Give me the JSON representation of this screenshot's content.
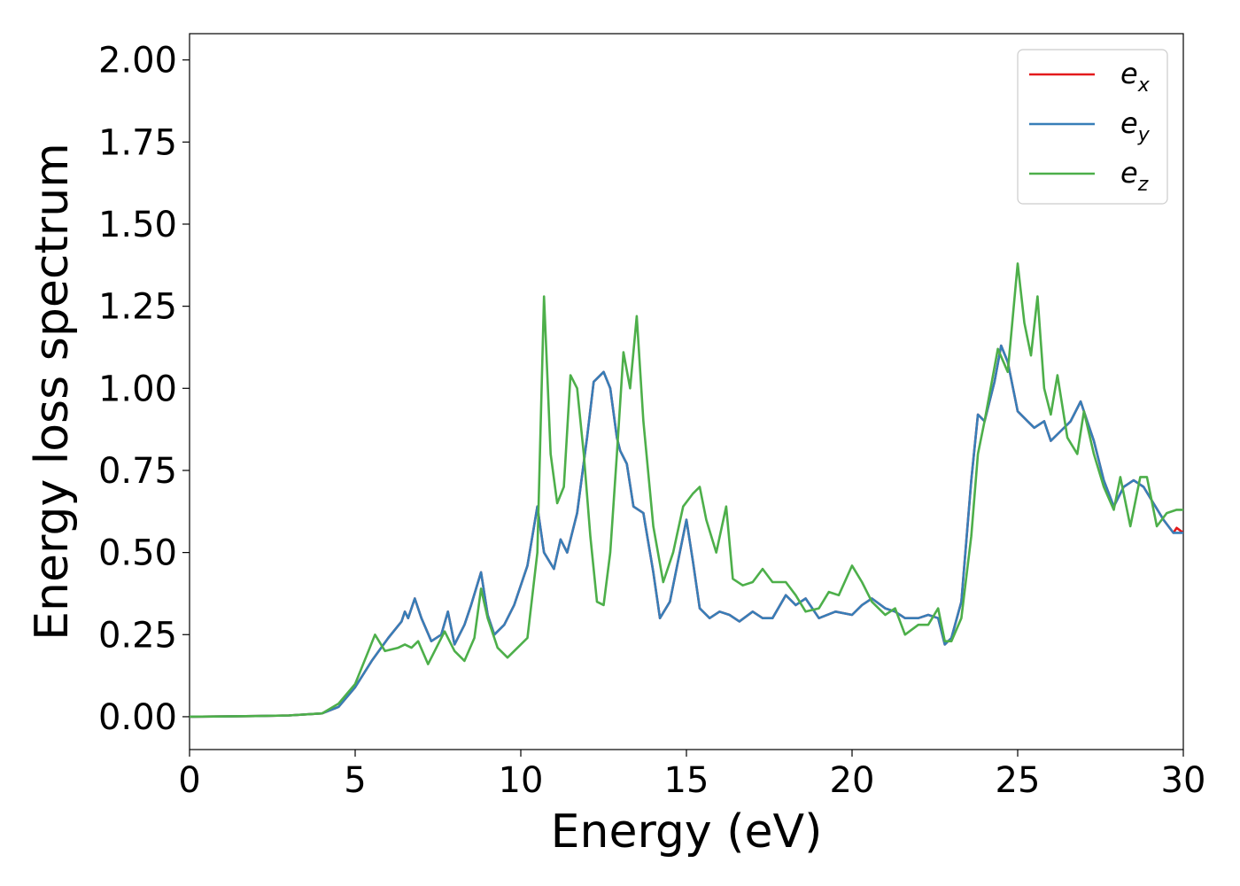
{
  "chart_data": {
    "type": "line",
    "title": "",
    "xlabel": "Energy (eV)",
    "ylabel": "Energy loss spectrum",
    "xlim": [
      0,
      30
    ],
    "ylim": [
      -0.1,
      2.08
    ],
    "xticks": [
      "0",
      "5",
      "10",
      "15",
      "20",
      "25",
      "30"
    ],
    "yticks": [
      "0.00",
      "0.25",
      "0.50",
      "0.75",
      "1.00",
      "1.25",
      "1.50",
      "1.75",
      "2.00"
    ],
    "grid": false,
    "legend_position": "top-right",
    "series": [
      {
        "name": "e_x",
        "label_base": "e",
        "label_sub": "x",
        "color": "#e41a1c",
        "points": [
          [
            0,
            0
          ],
          [
            2,
            0.002
          ],
          [
            3,
            0.004
          ],
          [
            4,
            0.01
          ],
          [
            4.5,
            0.03
          ],
          [
            5,
            0.09
          ],
          [
            5.5,
            0.17
          ],
          [
            6,
            0.24
          ],
          [
            6.4,
            0.29
          ],
          [
            6.5,
            0.32
          ],
          [
            6.6,
            0.3
          ],
          [
            6.8,
            0.36
          ],
          [
            7,
            0.3
          ],
          [
            7.3,
            0.23
          ],
          [
            7.6,
            0.25
          ],
          [
            7.8,
            0.32
          ],
          [
            8,
            0.22
          ],
          [
            8.3,
            0.28
          ],
          [
            8.5,
            0.34
          ],
          [
            8.8,
            0.44
          ],
          [
            9,
            0.31
          ],
          [
            9.2,
            0.25
          ],
          [
            9.5,
            0.28
          ],
          [
            9.8,
            0.34
          ],
          [
            10,
            0.4
          ],
          [
            10.2,
            0.46
          ],
          [
            10.5,
            0.64
          ],
          [
            10.7,
            0.5
          ],
          [
            11,
            0.45
          ],
          [
            11.2,
            0.54
          ],
          [
            11.4,
            0.5
          ],
          [
            11.7,
            0.62
          ],
          [
            12,
            0.85
          ],
          [
            12.2,
            1.02
          ],
          [
            12.5,
            1.05
          ],
          [
            12.7,
            1.0
          ],
          [
            12.9,
            0.85
          ],
          [
            13,
            0.81
          ],
          [
            13.2,
            0.77
          ],
          [
            13.4,
            0.64
          ],
          [
            13.7,
            0.62
          ],
          [
            14,
            0.44
          ],
          [
            14.2,
            0.3
          ],
          [
            14.5,
            0.35
          ],
          [
            14.8,
            0.5
          ],
          [
            15,
            0.6
          ],
          [
            15.2,
            0.47
          ],
          [
            15.4,
            0.33
          ],
          [
            15.7,
            0.3
          ],
          [
            16,
            0.32
          ],
          [
            16.3,
            0.31
          ],
          [
            16.6,
            0.29
          ],
          [
            17,
            0.32
          ],
          [
            17.3,
            0.3
          ],
          [
            17.6,
            0.3
          ],
          [
            18,
            0.37
          ],
          [
            18.3,
            0.34
          ],
          [
            18.6,
            0.36
          ],
          [
            19,
            0.3
          ],
          [
            19.5,
            0.32
          ],
          [
            20,
            0.31
          ],
          [
            20.3,
            0.34
          ],
          [
            20.6,
            0.36
          ],
          [
            21,
            0.33
          ],
          [
            21.3,
            0.32
          ],
          [
            21.6,
            0.3
          ],
          [
            22,
            0.3
          ],
          [
            22.3,
            0.31
          ],
          [
            22.6,
            0.3
          ],
          [
            22.8,
            0.22
          ],
          [
            23,
            0.24
          ],
          [
            23.3,
            0.35
          ],
          [
            23.6,
            0.72
          ],
          [
            23.8,
            0.92
          ],
          [
            24,
            0.9
          ],
          [
            24.3,
            1.02
          ],
          [
            24.5,
            1.13
          ],
          [
            24.7,
            1.08
          ],
          [
            25,
            0.93
          ],
          [
            25.3,
            0.9
          ],
          [
            25.5,
            0.88
          ],
          [
            25.8,
            0.9
          ],
          [
            26,
            0.84
          ],
          [
            26.3,
            0.87
          ],
          [
            26.6,
            0.9
          ],
          [
            26.9,
            0.96
          ],
          [
            27.1,
            0.9
          ],
          [
            27.3,
            0.84
          ],
          [
            27.6,
            0.72
          ],
          [
            27.9,
            0.64
          ],
          [
            28.2,
            0.7
          ],
          [
            28.5,
            0.72
          ],
          [
            28.8,
            0.7
          ],
          [
            29.1,
            0.65
          ],
          [
            29.4,
            0.6
          ],
          [
            29.7,
            0.56
          ],
          [
            29.8,
            0.575
          ],
          [
            30,
            0.56
          ]
        ]
      },
      {
        "name": "e_y",
        "label_base": "e",
        "label_sub": "y",
        "color": "#377eb8",
        "points": [
          [
            0,
            0
          ],
          [
            2,
            0.002
          ],
          [
            3,
            0.004
          ],
          [
            4,
            0.01
          ],
          [
            4.5,
            0.03
          ],
          [
            5,
            0.09
          ],
          [
            5.5,
            0.17
          ],
          [
            6,
            0.24
          ],
          [
            6.4,
            0.29
          ],
          [
            6.5,
            0.32
          ],
          [
            6.6,
            0.3
          ],
          [
            6.8,
            0.36
          ],
          [
            7,
            0.3
          ],
          [
            7.3,
            0.23
          ],
          [
            7.6,
            0.25
          ],
          [
            7.8,
            0.32
          ],
          [
            8,
            0.22
          ],
          [
            8.3,
            0.28
          ],
          [
            8.5,
            0.34
          ],
          [
            8.8,
            0.44
          ],
          [
            9,
            0.31
          ],
          [
            9.2,
            0.25
          ],
          [
            9.5,
            0.28
          ],
          [
            9.8,
            0.34
          ],
          [
            10,
            0.4
          ],
          [
            10.2,
            0.46
          ],
          [
            10.5,
            0.64
          ],
          [
            10.7,
            0.5
          ],
          [
            11,
            0.45
          ],
          [
            11.2,
            0.54
          ],
          [
            11.4,
            0.5
          ],
          [
            11.7,
            0.62
          ],
          [
            12,
            0.85
          ],
          [
            12.2,
            1.02
          ],
          [
            12.5,
            1.05
          ],
          [
            12.7,
            1.0
          ],
          [
            12.9,
            0.85
          ],
          [
            13,
            0.81
          ],
          [
            13.2,
            0.77
          ],
          [
            13.4,
            0.64
          ],
          [
            13.7,
            0.62
          ],
          [
            14,
            0.44
          ],
          [
            14.2,
            0.3
          ],
          [
            14.5,
            0.35
          ],
          [
            14.8,
            0.5
          ],
          [
            15,
            0.6
          ],
          [
            15.2,
            0.47
          ],
          [
            15.4,
            0.33
          ],
          [
            15.7,
            0.3
          ],
          [
            16,
            0.32
          ],
          [
            16.3,
            0.31
          ],
          [
            16.6,
            0.29
          ],
          [
            17,
            0.32
          ],
          [
            17.3,
            0.3
          ],
          [
            17.6,
            0.3
          ],
          [
            18,
            0.37
          ],
          [
            18.3,
            0.34
          ],
          [
            18.6,
            0.36
          ],
          [
            19,
            0.3
          ],
          [
            19.5,
            0.32
          ],
          [
            20,
            0.31
          ],
          [
            20.3,
            0.34
          ],
          [
            20.6,
            0.36
          ],
          [
            21,
            0.33
          ],
          [
            21.3,
            0.32
          ],
          [
            21.6,
            0.3
          ],
          [
            22,
            0.3
          ],
          [
            22.3,
            0.31
          ],
          [
            22.6,
            0.3
          ],
          [
            22.8,
            0.22
          ],
          [
            23,
            0.24
          ],
          [
            23.3,
            0.35
          ],
          [
            23.6,
            0.72
          ],
          [
            23.8,
            0.92
          ],
          [
            24,
            0.9
          ],
          [
            24.3,
            1.02
          ],
          [
            24.5,
            1.13
          ],
          [
            24.7,
            1.08
          ],
          [
            25,
            0.93
          ],
          [
            25.3,
            0.9
          ],
          [
            25.5,
            0.88
          ],
          [
            25.8,
            0.9
          ],
          [
            26,
            0.84
          ],
          [
            26.3,
            0.87
          ],
          [
            26.6,
            0.9
          ],
          [
            26.9,
            0.96
          ],
          [
            27.1,
            0.9
          ],
          [
            27.3,
            0.84
          ],
          [
            27.6,
            0.72
          ],
          [
            27.9,
            0.64
          ],
          [
            28.2,
            0.7
          ],
          [
            28.5,
            0.72
          ],
          [
            28.8,
            0.7
          ],
          [
            29.1,
            0.65
          ],
          [
            29.4,
            0.6
          ],
          [
            29.7,
            0.56
          ],
          [
            30,
            0.56
          ]
        ]
      },
      {
        "name": "e_z",
        "label_base": "e",
        "label_sub": "z",
        "color": "#4daf4a",
        "points": [
          [
            0,
            0
          ],
          [
            2,
            0.002
          ],
          [
            3,
            0.004
          ],
          [
            4,
            0.01
          ],
          [
            4.5,
            0.04
          ],
          [
            5,
            0.1
          ],
          [
            5.4,
            0.2
          ],
          [
            5.6,
            0.25
          ],
          [
            5.9,
            0.2
          ],
          [
            6.3,
            0.21
          ],
          [
            6.5,
            0.22
          ],
          [
            6.7,
            0.21
          ],
          [
            6.9,
            0.23
          ],
          [
            7.2,
            0.16
          ],
          [
            7.5,
            0.22
          ],
          [
            7.7,
            0.26
          ],
          [
            8,
            0.2
          ],
          [
            8.3,
            0.17
          ],
          [
            8.6,
            0.24
          ],
          [
            8.8,
            0.39
          ],
          [
            9,
            0.3
          ],
          [
            9.3,
            0.21
          ],
          [
            9.6,
            0.18
          ],
          [
            9.9,
            0.21
          ],
          [
            10.2,
            0.24
          ],
          [
            10.5,
            0.5
          ],
          [
            10.7,
            1.28
          ],
          [
            10.9,
            0.8
          ],
          [
            11.1,
            0.65
          ],
          [
            11.3,
            0.7
          ],
          [
            11.5,
            1.04
          ],
          [
            11.7,
            1.0
          ],
          [
            11.9,
            0.8
          ],
          [
            12.1,
            0.55
          ],
          [
            12.3,
            0.35
          ],
          [
            12.5,
            0.34
          ],
          [
            12.7,
            0.5
          ],
          [
            12.9,
            0.8
          ],
          [
            13.1,
            1.11
          ],
          [
            13.3,
            1.0
          ],
          [
            13.5,
            1.22
          ],
          [
            13.7,
            0.9
          ],
          [
            14,
            0.58
          ],
          [
            14.3,
            0.41
          ],
          [
            14.6,
            0.5
          ],
          [
            14.9,
            0.64
          ],
          [
            15.2,
            0.68
          ],
          [
            15.4,
            0.7
          ],
          [
            15.6,
            0.6
          ],
          [
            15.9,
            0.5
          ],
          [
            16.2,
            0.64
          ],
          [
            16.4,
            0.42
          ],
          [
            16.7,
            0.4
          ],
          [
            17,
            0.41
          ],
          [
            17.3,
            0.45
          ],
          [
            17.6,
            0.41
          ],
          [
            18,
            0.41
          ],
          [
            18.3,
            0.37
          ],
          [
            18.6,
            0.32
          ],
          [
            19,
            0.33
          ],
          [
            19.3,
            0.38
          ],
          [
            19.6,
            0.37
          ],
          [
            20,
            0.46
          ],
          [
            20.3,
            0.41
          ],
          [
            20.6,
            0.35
          ],
          [
            21,
            0.31
          ],
          [
            21.3,
            0.33
          ],
          [
            21.6,
            0.25
          ],
          [
            22,
            0.28
          ],
          [
            22.3,
            0.28
          ],
          [
            22.6,
            0.33
          ],
          [
            22.8,
            0.23
          ],
          [
            23,
            0.23
          ],
          [
            23.3,
            0.3
          ],
          [
            23.6,
            0.55
          ],
          [
            23.8,
            0.8
          ],
          [
            24,
            0.9
          ],
          [
            24.4,
            1.12
          ],
          [
            24.7,
            1.05
          ],
          [
            25,
            1.38
          ],
          [
            25.2,
            1.2
          ],
          [
            25.4,
            1.1
          ],
          [
            25.6,
            1.28
          ],
          [
            25.8,
            1.0
          ],
          [
            26,
            0.92
          ],
          [
            26.2,
            1.04
          ],
          [
            26.5,
            0.85
          ],
          [
            26.8,
            0.8
          ],
          [
            27,
            0.93
          ],
          [
            27.3,
            0.8
          ],
          [
            27.6,
            0.7
          ],
          [
            27.9,
            0.63
          ],
          [
            28.1,
            0.73
          ],
          [
            28.4,
            0.58
          ],
          [
            28.7,
            0.73
          ],
          [
            28.9,
            0.73
          ],
          [
            29.2,
            0.58
          ],
          [
            29.5,
            0.62
          ],
          [
            29.8,
            0.63
          ],
          [
            30,
            0.63
          ]
        ]
      }
    ]
  }
}
